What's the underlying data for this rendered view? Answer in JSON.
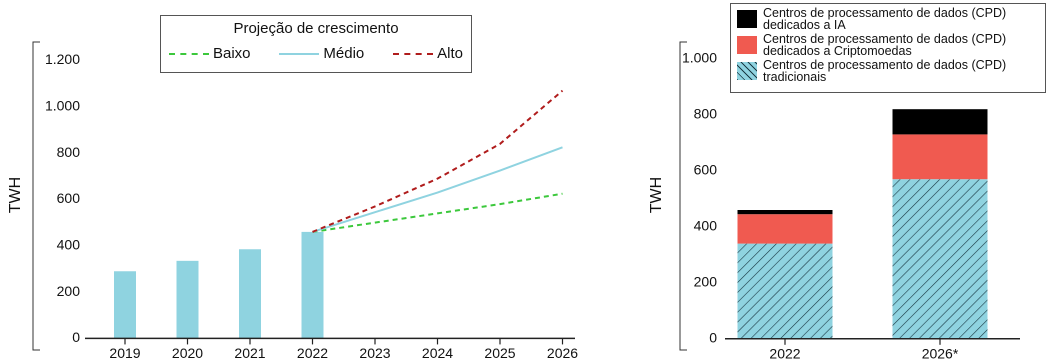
{
  "chart_data": [
    {
      "type": "bar_line",
      "legend_title": "Projeção de crescimento",
      "ylabel": "TWH",
      "categories": [
        "2019",
        "2020",
        "2021",
        "2022",
        "2023",
        "2024",
        "2025",
        "2026"
      ],
      "values": [
        290,
        335,
        385,
        460,
        null,
        null,
        null,
        null
      ],
      "color": "#8fd3e0",
      "series": [
        {
          "name": "Baixo",
          "color": "#3cc83c",
          "dash": true,
          "values": [
            null,
            null,
            null,
            460,
            500,
            540,
            580,
            625
          ]
        },
        {
          "name": "Médio",
          "color": "#8fd3e0",
          "dash": false,
          "values": [
            null,
            null,
            null,
            460,
            545,
            630,
            725,
            825
          ]
        },
        {
          "name": "Alto",
          "color": "#b01c1c",
          "dash": true,
          "values": [
            null,
            null,
            null,
            460,
            570,
            690,
            840,
            1070
          ]
        }
      ],
      "ylim": [
        -50,
        1280
      ],
      "yticks": [
        0,
        200,
        400,
        600,
        800,
        {
          "value": 1000,
          "label": "1.000"
        },
        {
          "value": 1200,
          "label": "1.200"
        }
      ]
    },
    {
      "type": "stacked_bar",
      "ylabel": "TWH",
      "categories": [
        "2022",
        "2026*"
      ],
      "series": [
        {
          "name": "Centros de processamento de dados (CPD) tradicionais",
          "color": "#8fd3e0",
          "hatch": true,
          "values": [
            340,
            570
          ]
        },
        {
          "name": "Centros de processamento de dados (CPD) dedicados a Criptomoedas",
          "color": "#f05a50",
          "hatch": false,
          "values": [
            105,
            160
          ]
        },
        {
          "name": "Centros de processamento de dados (CPD) dedicados a IA",
          "color": "#000000",
          "hatch": false,
          "values": [
            15,
            90
          ]
        }
      ],
      "ylim": [
        -40,
        1060
      ],
      "yticks": [
        0,
        200,
        400,
        600,
        800,
        {
          "value": 1000,
          "label": "1.000"
        }
      ]
    }
  ]
}
